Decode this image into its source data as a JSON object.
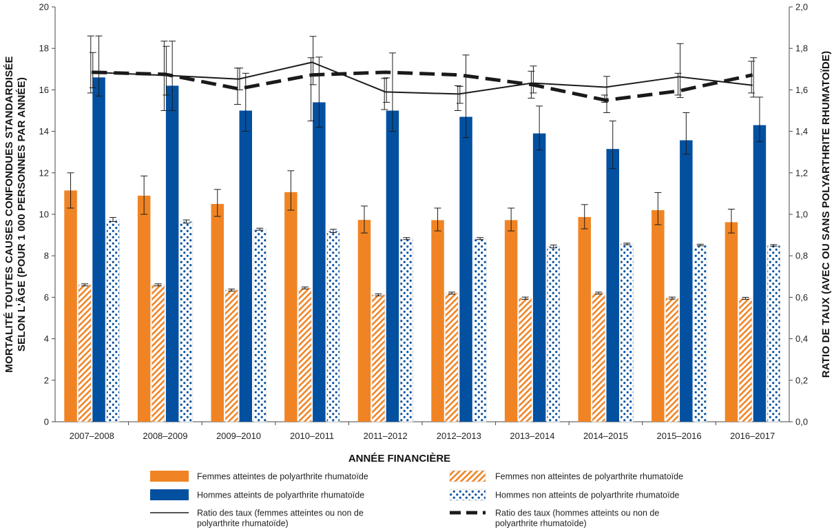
{
  "chart_data": {
    "type": "bar",
    "categories": [
      "2007–2008",
      "2008–2009",
      "2009–2010",
      "2010–2011",
      "2011–2012",
      "2012–2013",
      "2013–2014",
      "2014–2015",
      "2015–2016",
      "2016–2017"
    ],
    "xlabel": "ANNÉE FINANCIÈRE",
    "ylabel_left": [
      "MORTALITÉ TOUTES CAUSES CONFONDUES STANDARDISÉE",
      "SELON L'ÂGE (POUR 1 000 PERSONNES PAR ANNÉE)"
    ],
    "ylabel_right": "RATIO DE TAUX (AVEC OU SANS POLYARTHRITE RHUMATOÏDE)",
    "ylim_left": [
      0,
      20
    ],
    "yticks_left": [
      "0",
      "2",
      "4",
      "6",
      "8",
      "10",
      "12",
      "14",
      "16",
      "18",
      "20"
    ],
    "ylim_right": [
      0,
      2
    ],
    "yticks_right": [
      "0,0",
      "0,2",
      "0,4",
      "0,6",
      "0,8",
      "1,0",
      "1,2",
      "1,4",
      "1,6",
      "1,8",
      "2,0"
    ],
    "grid": false,
    "legend_position": "bottom",
    "bar_series": [
      {
        "name": "Femmes atteintes de polyarthrite rhumatoïde",
        "color": "#f08424",
        "pattern": "solid",
        "values": [
          11.15,
          10.9,
          10.5,
          11.07,
          9.73,
          9.72,
          9.72,
          9.87,
          10.2,
          9.62
        ],
        "err_low": [
          10.3,
          10.0,
          9.9,
          10.2,
          9.1,
          9.2,
          9.2,
          9.3,
          9.5,
          9.1
        ],
        "err_high": [
          12.0,
          11.85,
          11.2,
          12.1,
          10.4,
          10.3,
          10.3,
          10.47,
          11.05,
          10.25
        ]
      },
      {
        "name": "Femmes non atteintes de polyarthrite rhumatoïde",
        "color": "#f08424",
        "pattern": "hatch",
        "values": [
          6.6,
          6.6,
          6.35,
          6.45,
          6.12,
          6.2,
          5.96,
          6.2,
          5.96,
          5.95
        ],
        "err_low": [
          6.55,
          6.55,
          6.3,
          6.4,
          6.07,
          6.15,
          5.9,
          6.15,
          5.91,
          5.9
        ],
        "err_high": [
          6.65,
          6.65,
          6.4,
          6.5,
          6.17,
          6.25,
          6.01,
          6.25,
          6.01,
          6.0
        ]
      },
      {
        "name": "Hommes atteints de polyarthrite rhumatoïde",
        "color": "#0350a0",
        "pattern": "solid",
        "values": [
          16.6,
          16.2,
          15.0,
          15.4,
          15.0,
          14.7,
          13.9,
          13.15,
          13.57,
          14.3
        ],
        "err_low": [
          15.7,
          15.0,
          14.0,
          14.2,
          14.0,
          13.7,
          13.1,
          12.2,
          12.9,
          13.5
        ],
        "err_high": [
          18.6,
          18.35,
          16.8,
          17.58,
          17.78,
          17.68,
          15.22,
          14.5,
          14.9,
          15.65
        ]
      },
      {
        "name": "Hommes non atteints de polyarthrite rhumatoïde",
        "color": "#0350a0",
        "pattern": "dots",
        "values": [
          9.75,
          9.65,
          9.28,
          9.2,
          8.83,
          8.83,
          8.45,
          8.57,
          8.52,
          8.5
        ],
        "err_low": [
          9.65,
          9.57,
          9.23,
          9.12,
          8.78,
          8.78,
          8.38,
          8.53,
          8.48,
          8.46
        ],
        "err_high": [
          9.85,
          9.73,
          9.33,
          9.28,
          8.88,
          8.88,
          8.52,
          8.61,
          8.56,
          8.54
        ]
      }
    ],
    "line_series": [
      {
        "name": "Ratio des taux (femmes atteintes ou non de polyarthrite rhumatoïde)",
        "axis": "right",
        "color": "#1a1a1a",
        "style": "solid",
        "values": [
          1.685,
          1.67,
          1.652,
          1.733,
          1.59,
          1.58,
          1.633,
          1.613,
          1.663,
          1.622
        ],
        "err_low": [
          1.61,
          1.575,
          1.6,
          1.625,
          1.54,
          1.535,
          1.585,
          1.49,
          1.563,
          1.565
        ],
        "err_high": [
          1.78,
          1.81,
          1.705,
          1.858,
          1.658,
          1.617,
          1.715,
          1.665,
          1.823,
          1.755
        ]
      },
      {
        "name": "Ratio des taux (hommes atteints ou non de polyarthrite rhumatoïde)",
        "axis": "right",
        "color": "#1a1a1a",
        "style": "dashed",
        "values": [
          1.685,
          1.675,
          1.605,
          1.672,
          1.685,
          1.672,
          1.625,
          1.55,
          1.595,
          1.672
        ],
        "err_low": [
          1.585,
          1.5,
          1.53,
          1.45,
          1.505,
          1.5,
          1.56,
          1.54,
          1.575,
          1.585
        ],
        "err_high": [
          1.86,
          1.835,
          1.705,
          1.755,
          1.655,
          1.62,
          1.69,
          1.575,
          1.68,
          1.738
        ]
      }
    ]
  },
  "legend": {
    "items": [
      {
        "label": "Femmes atteintes de polyarthrite rhumatoïde",
        "kind": "solid-orange"
      },
      {
        "label": "Femmes non atteintes de polyarthrite rhumatoïde",
        "kind": "hatch-orange"
      },
      {
        "label": "Hommes atteints de polyarthrite rhumatoïde",
        "kind": "solid-blue"
      },
      {
        "label": "Hommes non atteints de polyarthrite rhumatoïde",
        "kind": "dots-blue"
      },
      {
        "label_lines": [
          "Ratio des taux (femmes atteintes ou non de",
          "polyarthrite rhumatoïde)"
        ],
        "kind": "line-solid"
      },
      {
        "label_lines": [
          "Ratio des taux (hommes atteints ou non de",
          "polyarthrite rhumatoïde)"
        ],
        "kind": "line-dashed"
      }
    ]
  }
}
